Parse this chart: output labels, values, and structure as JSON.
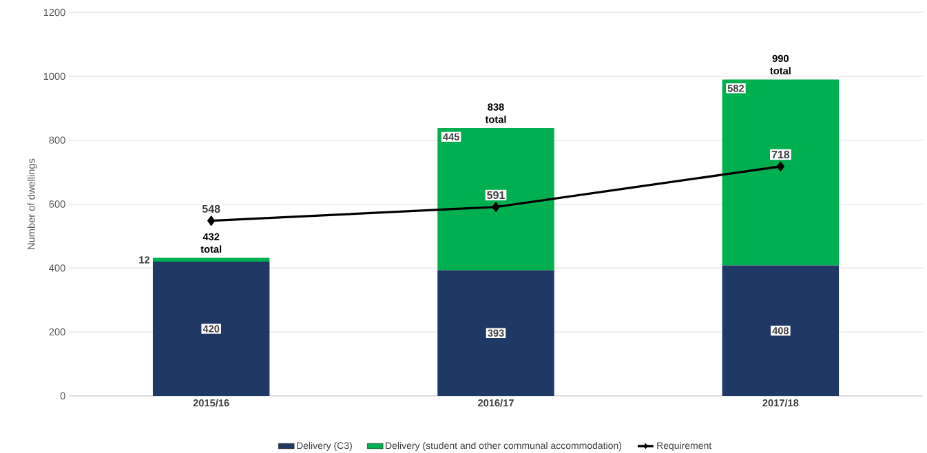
{
  "chart_data": {
    "type": "bar",
    "stacked": true,
    "categories": [
      "2015/16",
      "2016/17",
      "2017/18"
    ],
    "series": [
      {
        "name": "Delivery (C3)",
        "color": "#1f3864",
        "values": [
          420,
          393,
          408
        ]
      },
      {
        "name": "Delivery (student and other communal accommodation)",
        "color": "#00b050",
        "values": [
          12,
          445,
          582
        ]
      },
      {
        "name": "Requirement",
        "type": "line",
        "color": "#000000",
        "values": [
          548,
          591,
          718
        ]
      }
    ],
    "totals": [
      "432 total",
      "838 total",
      "990 total"
    ],
    "ylabel": "Number of dwellings",
    "ylim": [
      0,
      1200
    ],
    "yticks": [
      0,
      200,
      400,
      600,
      800,
      1000,
      1200
    ],
    "grid": "y",
    "legend": "bottom",
    "data_labels": true,
    "marker": "diamond"
  }
}
